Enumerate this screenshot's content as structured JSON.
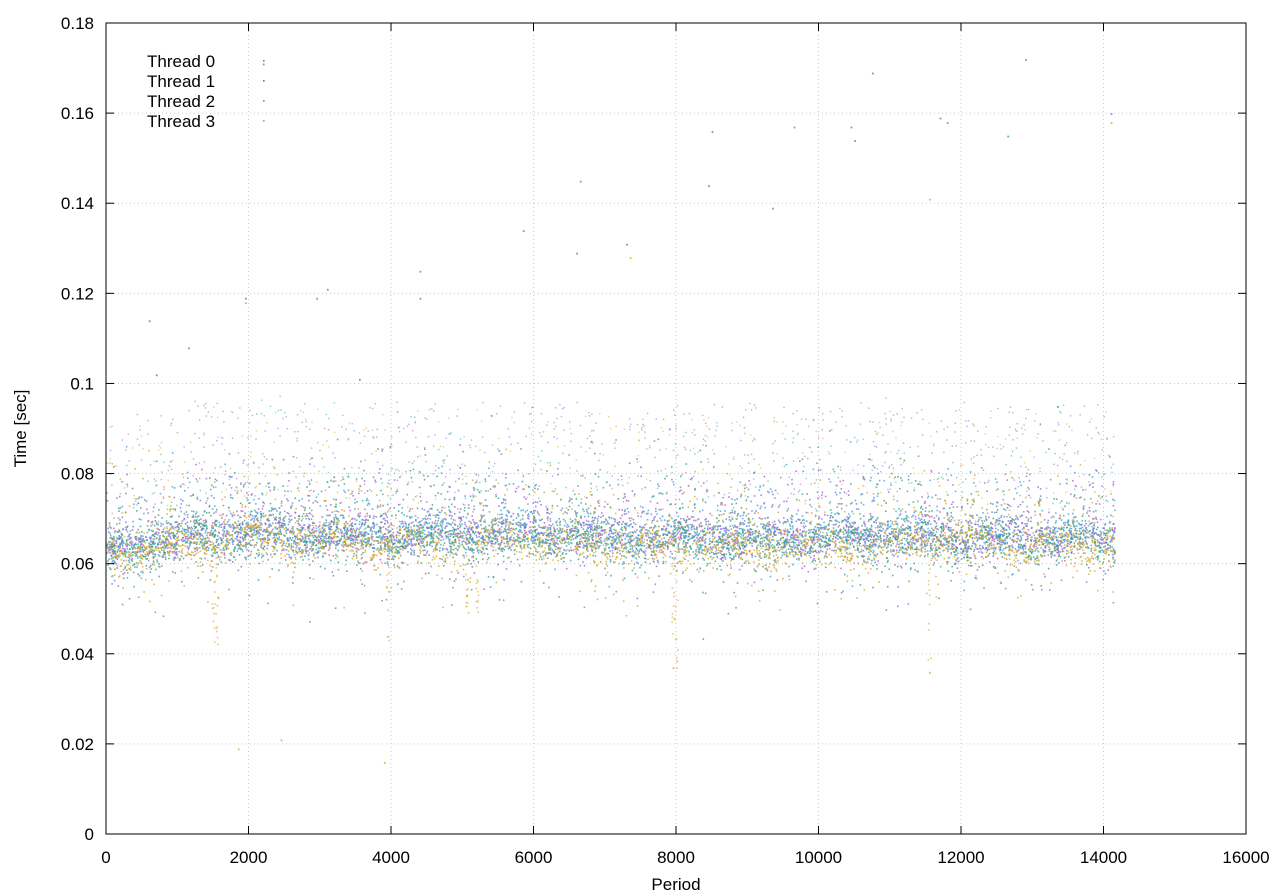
{
  "chart_data": {
    "type": "scatter",
    "title": "",
    "xlabel": "Period",
    "ylabel": "Time [sec]",
    "xlim": [
      0,
      16000
    ],
    "ylim": [
      0,
      0.18
    ],
    "x_ticks": [
      "0",
      "2000",
      "4000",
      "6000",
      "8000",
      "10000",
      "12000",
      "14000",
      "16000"
    ],
    "y_ticks": [
      "0",
      "0.02",
      "0.04",
      "0.06",
      "0.08",
      "0.1",
      "0.12",
      "0.14",
      "0.16",
      "0.18"
    ],
    "grid": true,
    "legend_position": "top-left",
    "x_range_data": [
      0,
      14150
    ],
    "series": [
      {
        "name": "Thread 0",
        "color": "#9b59d6",
        "baseline": [
          [
            0,
            0.063
          ],
          [
            1000,
            0.066
          ],
          [
            2000,
            0.068
          ],
          [
            3000,
            0.067
          ],
          [
            4000,
            0.066
          ],
          [
            5000,
            0.067
          ],
          [
            6000,
            0.067
          ],
          [
            7000,
            0.066
          ],
          [
            8000,
            0.066
          ],
          [
            9000,
            0.066
          ],
          [
            10000,
            0.066
          ],
          [
            11000,
            0.066
          ],
          [
            12000,
            0.066
          ],
          [
            13000,
            0.066
          ],
          [
            14150,
            0.066
          ]
        ],
        "outliers": [
          [
            2200,
            0.171
          ],
          [
            10750,
            0.169
          ],
          [
            8500,
            0.156
          ],
          [
            10500,
            0.154
          ],
          [
            12900,
            0.172
          ],
          [
            1150,
            0.108
          ],
          [
            2950,
            0.119
          ],
          [
            4400,
            0.119
          ],
          [
            6600,
            0.129
          ],
          [
            9350,
            0.139
          ],
          [
            11700,
            0.159
          ],
          [
            600,
            0.114
          ]
        ]
      },
      {
        "name": "Thread 1",
        "color": "#2a9e7a",
        "baseline": [
          [
            0,
            0.062
          ],
          [
            1000,
            0.065
          ],
          [
            2000,
            0.067
          ],
          [
            3000,
            0.066
          ],
          [
            4000,
            0.065
          ],
          [
            5000,
            0.066
          ],
          [
            6000,
            0.066
          ],
          [
            7000,
            0.065
          ],
          [
            8000,
            0.065
          ],
          [
            9000,
            0.065
          ],
          [
            10000,
            0.065
          ],
          [
            11000,
            0.066
          ],
          [
            12000,
            0.065
          ],
          [
            13000,
            0.065
          ],
          [
            14150,
            0.065
          ]
        ],
        "outliers": [
          [
            700,
            0.102
          ],
          [
            3550,
            0.101
          ],
          [
            5850,
            0.134
          ],
          [
            8450,
            0.144
          ],
          [
            10450,
            0.157
          ],
          [
            12650,
            0.155
          ],
          [
            1950,
            0.119
          ],
          [
            7300,
            0.131
          ],
          [
            13350,
            0.095
          ]
        ]
      },
      {
        "name": "Thread 2",
        "color": "#3d9ad6",
        "baseline": [
          [
            0,
            0.063
          ],
          [
            1000,
            0.066
          ],
          [
            2000,
            0.067
          ],
          [
            3000,
            0.066
          ],
          [
            4000,
            0.066
          ],
          [
            5000,
            0.066
          ],
          [
            6000,
            0.067
          ],
          [
            7000,
            0.066
          ],
          [
            8000,
            0.066
          ],
          [
            9000,
            0.066
          ],
          [
            10000,
            0.066
          ],
          [
            11000,
            0.067
          ],
          [
            12000,
            0.066
          ],
          [
            13000,
            0.066
          ],
          [
            14150,
            0.066
          ]
        ],
        "outliers": [
          [
            3100,
            0.121
          ],
          [
            4400,
            0.125
          ],
          [
            6650,
            0.145
          ],
          [
            9650,
            0.157
          ],
          [
            11800,
            0.158
          ],
          [
            14100,
            0.16
          ],
          [
            5400,
            0.093
          ],
          [
            7900,
            0.09
          ]
        ]
      },
      {
        "name": "Thread 3",
        "color": "#d4a72c",
        "baseline": [
          [
            0,
            0.062
          ],
          [
            1000,
            0.064
          ],
          [
            2000,
            0.066
          ],
          [
            3000,
            0.065
          ],
          [
            4000,
            0.064
          ],
          [
            5000,
            0.065
          ],
          [
            6000,
            0.065
          ],
          [
            7000,
            0.064
          ],
          [
            8000,
            0.064
          ],
          [
            9000,
            0.064
          ],
          [
            10000,
            0.064
          ],
          [
            11000,
            0.064
          ],
          [
            12000,
            0.065
          ],
          [
            13000,
            0.064
          ],
          [
            14150,
            0.064
          ]
        ],
        "outliers": [
          [
            1950,
            0.118
          ],
          [
            7350,
            0.128
          ],
          [
            11550,
            0.141
          ],
          [
            14100,
            0.158
          ],
          [
            1850,
            0.019
          ],
          [
            3900,
            0.016
          ],
          [
            2450,
            0.021
          ],
          [
            11550,
            0.036
          ],
          [
            7950,
            0.037
          ]
        ],
        "dips": [
          [
            1500,
            0.042
          ],
          [
            1550,
            0.041
          ],
          [
            5050,
            0.05
          ],
          [
            5200,
            0.049
          ],
          [
            7950,
            0.038
          ],
          [
            8000,
            0.036
          ],
          [
            11550,
            0.038
          ],
          [
            3950,
            0.043
          ]
        ]
      }
    ]
  }
}
